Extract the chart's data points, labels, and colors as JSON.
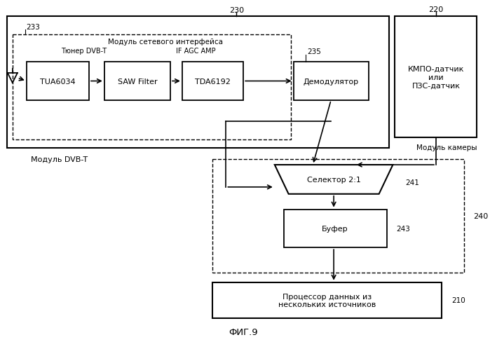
{
  "bg_color": "#ffffff",
  "title_text": "ФИГ.9",
  "labels": {
    "230": "230",
    "220": "220",
    "233": "233",
    "235": "235",
    "241": "241",
    "243": "243",
    "240": "240",
    "210": "210"
  },
  "text_labels": {
    "module_network": "Модуль сетевого интерфейса",
    "tuner_dvbt": "Тюнер DVB-T",
    "if_agc_amp": "IF AGC AMP",
    "module_dvbt": "Модуль DVB-T",
    "kmpo": "КМПО-датчик\nили\nПЗС-датчик",
    "module_camera": "Модуль камеры",
    "selector": "Селектор 2:1",
    "buffer": "Буфер",
    "processor": "Процессор данных из\nнескольких источников"
  },
  "chip_labels": {
    "tua6034": "TUA6034",
    "saw_filter": "SAW Filter",
    "tda6192": "TDA6192",
    "demodulator": "Демодулятор"
  }
}
